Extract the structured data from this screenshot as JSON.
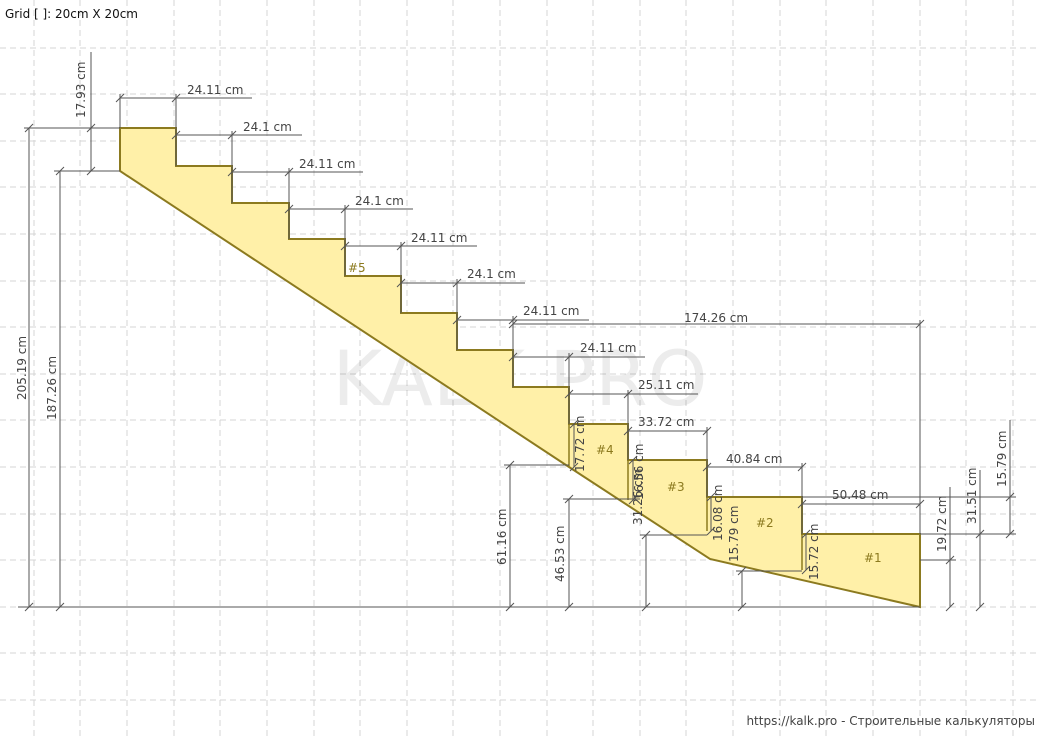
{
  "header": {
    "grid_label": "Grid [ ]: 20cm X 20cm"
  },
  "footer": {
    "credit": "https://kalk.pro - Строительные калькуляторы"
  },
  "watermark": "KALK.PRO",
  "colors": {
    "fill": "#fff0a8",
    "outline": "#8c7a1f",
    "dim": "#444444",
    "grid": "#cccccc"
  },
  "labels": {
    "step5": "#5",
    "step4": "#4",
    "step3": "#3",
    "step2": "#2",
    "step1": "#1"
  },
  "dims": {
    "top_h": "17.93 cm",
    "t1": "24.11 cm",
    "t2": "24.1 cm",
    "t3": "24.11 cm",
    "t4": "24.1 cm",
    "t5": "24.11 cm",
    "t6": "24.1 cm",
    "t7": "24.11 cm",
    "t8": "24.11 cm",
    "t9": "25.11 cm",
    "t10": "33.72 cm",
    "t11": "40.84 cm",
    "t12": "50.48 cm",
    "run": "174.26 cm",
    "total_h": "205.19 cm",
    "inner_h": "187.26 cm",
    "h61": "61.16 cm",
    "h46": "46.53 cm",
    "h31": "31.26 cm",
    "w4_h": "17.72 cm",
    "w3_h": "16.56 cm",
    "w2_h": "16.08 cm",
    "w2_low": "15.79 cm",
    "w1_h": "15.72 cm",
    "w1_r": "19.72 cm",
    "r3151": "31.51 cm",
    "r1579": "15.79 cm"
  }
}
